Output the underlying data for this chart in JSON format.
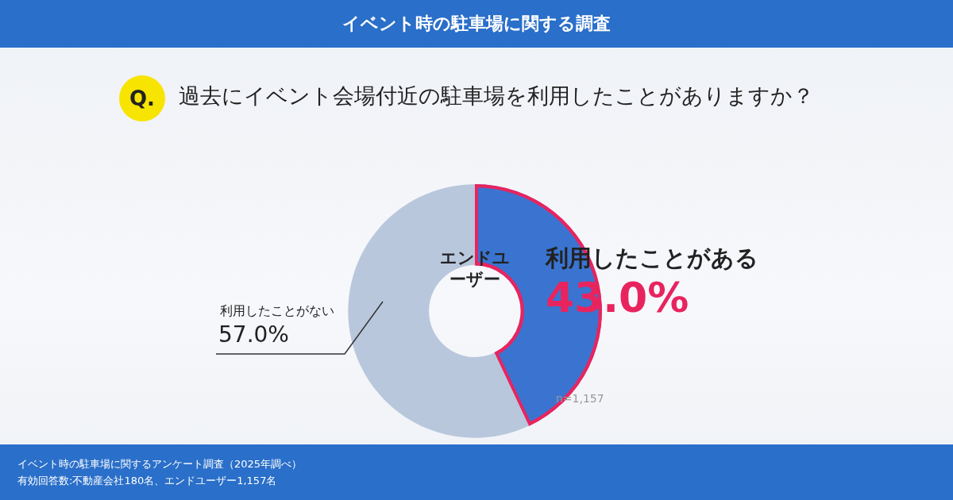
{
  "chart_data": {
    "type": "donut",
    "title": "イベント時の駐車場に関する調査",
    "subtitle": "過去にイベント会場付近の駐車場を利用したことがありますか？",
    "categories": [
      "利用したことがある",
      "利用したことがない"
    ],
    "values": [
      43.0,
      57.0
    ],
    "colors": [
      "#3a74d0",
      "#b8c7dc"
    ],
    "value_labels": [
      "43.0%",
      "57.0%"
    ],
    "legend": false,
    "annotations": [
      "Q.",
      "エンドユーザー",
      "n=1,157",
      "イベント時の駐車場に関するアンケート調査（2025年調べ）",
      "有効回答数:不動産会社180名、エンドユーザー1,157名"
    ]
  }
}
